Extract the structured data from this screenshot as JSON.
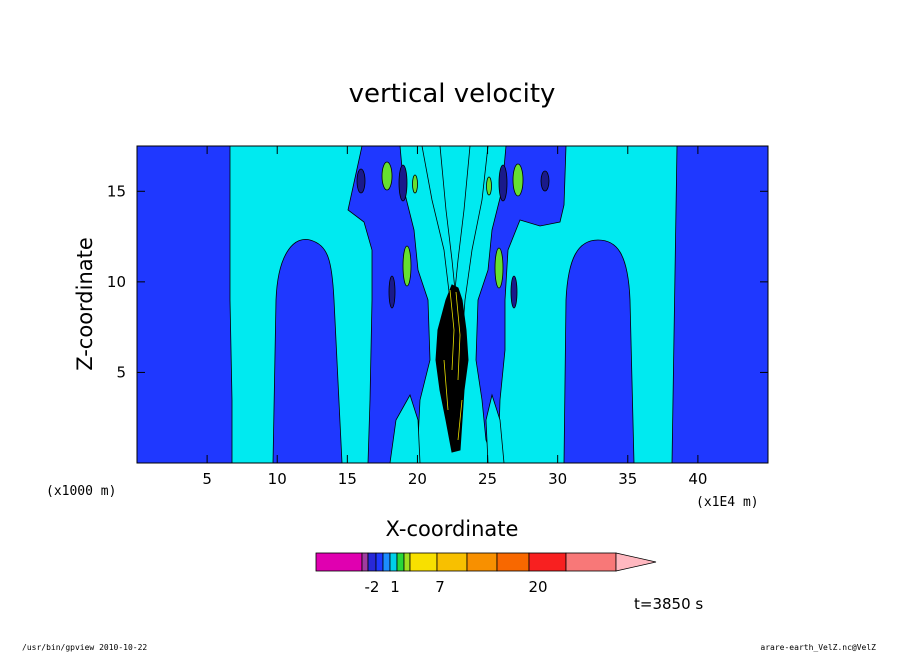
{
  "chart_data": {
    "type": "heatmap",
    "title": "vertical velocity",
    "xlabel": "X-coordinate",
    "ylabel": "Z-coordinate",
    "x_unit_left": "(x1000 m)",
    "x_unit_right": "(x1E4 m)",
    "xlim": [
      0,
      45
    ],
    "ylim": [
      0,
      17.5
    ],
    "x_ticks": [
      5,
      10,
      15,
      20,
      25,
      30,
      35,
      40
    ],
    "y_ticks": [
      5,
      10,
      15
    ],
    "x_ticklabels": [
      "5",
      "10",
      "15",
      "20",
      "25",
      "30",
      "35",
      "40"
    ],
    "y_ticklabels": [
      "5",
      "10",
      "15"
    ],
    "colorbar": {
      "labels": [
        "-2",
        "1",
        "7",
        "20"
      ],
      "colors": [
        "#e000b0",
        "#a03ca0",
        "#2828d8",
        "#1f38ff",
        "#1c8cff",
        "#00cfe8",
        "#28d838",
        "#a0e020",
        "#f8e000",
        "#f8c000",
        "#f89000",
        "#f86800",
        "#f82020",
        "#f87878",
        "#ffb8c0"
      ]
    },
    "field_colors": {
      "strong_down": "#1f38ff",
      "weak_down": "#00eaf0",
      "dark_core": "#000000",
      "navy_cells": "#1a1a8a",
      "green_cells": "#66e030",
      "yellow_core": "#e8e000"
    },
    "time_label": "t=3850 s",
    "grid": false
  },
  "footer": {
    "left": "/usr/bin/gpview   2010-10-22",
    "right": "arare-earth_VelZ.nc@VelZ"
  }
}
